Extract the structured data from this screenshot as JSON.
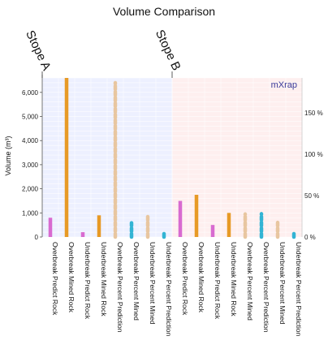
{
  "chart_data": {
    "type": "bar",
    "title": "Volume Comparison",
    "ylabel": "Volume (m³)",
    "y_ticks": [
      "0",
      "1,000",
      "2,000",
      "3,000",
      "4,000",
      "5,000",
      "6,000"
    ],
    "ylim": [
      0,
      6600
    ],
    "y2_ticks": [
      "0 %",
      "50 %",
      "100 %",
      "150 %"
    ],
    "y2lim": [
      0,
      192
    ],
    "logo": "mXrap",
    "groups": [
      {
        "name": "Stope A",
        "background": "#dfe3ff",
        "categories": [
          "Overbreak Predict Rock",
          "Overbreak Mined Rock",
          "Underbreak Predict Rock",
          "Underbreak Mined Rock",
          "Overbreak Percent Prediction",
          "Overbreak Percent Mined",
          "Underbreak Percent Mined",
          "Underbreak Percent Prediction"
        ]
      },
      {
        "name": "Stope B",
        "background": "#fde1e1",
        "categories": [
          "Overbreak Predict Rock",
          "Overbreak Mined Rock",
          "Underbreak Predict Rock",
          "Underbreak Mined Rock",
          "Overbreak Percent Mined",
          "Overbreak Percent Prediction",
          "Underbreak Percent Mined",
          "Underbreak Percent Prediction"
        ]
      }
    ],
    "series": [
      {
        "group": 0,
        "category": 0,
        "value": 800,
        "axis": "volume",
        "style": "solid",
        "color": "#d86bd0"
      },
      {
        "group": 0,
        "category": 1,
        "value": 6600,
        "axis": "volume",
        "style": "solid",
        "color": "#e79a26"
      },
      {
        "group": 0,
        "category": 2,
        "value": 200,
        "axis": "volume",
        "style": "solid",
        "color": "#d86bd0"
      },
      {
        "group": 0,
        "category": 3,
        "value": 900,
        "axis": "volume",
        "style": "solid",
        "color": "#e79a26"
      },
      {
        "group": 0,
        "category": 4,
        "value": 6400,
        "axis": "volume",
        "style": "dashed",
        "color": "#e8c6a0"
      },
      {
        "group": 0,
        "category": 5,
        "value": 17,
        "axis": "percent",
        "style": "dashed",
        "color": "#33b4d4"
      },
      {
        "group": 0,
        "category": 6,
        "value": 900,
        "axis": "volume",
        "style": "dashed",
        "color": "#e8c6a0"
      },
      {
        "group": 0,
        "category": 7,
        "value": 5,
        "axis": "percent",
        "style": "dashed",
        "color": "#33b4d4"
      },
      {
        "group": 1,
        "category": 0,
        "value": 1500,
        "axis": "volume",
        "style": "solid",
        "color": "#d86bd0"
      },
      {
        "group": 1,
        "category": 1,
        "value": 1750,
        "axis": "volume",
        "style": "solid",
        "color": "#e79a26"
      },
      {
        "group": 1,
        "category": 2,
        "value": 500,
        "axis": "volume",
        "style": "solid",
        "color": "#d86bd0"
      },
      {
        "group": 1,
        "category": 3,
        "value": 1000,
        "axis": "volume",
        "style": "solid",
        "color": "#e79a26"
      },
      {
        "group": 1,
        "category": 4,
        "value": 950,
        "axis": "volume",
        "style": "dashed",
        "color": "#e8c6a0"
      },
      {
        "group": 1,
        "category": 5,
        "value": 28,
        "axis": "percent",
        "style": "dashed",
        "color": "#33b4d4"
      },
      {
        "group": 1,
        "category": 6,
        "value": 600,
        "axis": "volume",
        "style": "dashed",
        "color": "#e8c6a0"
      },
      {
        "group": 1,
        "category": 7,
        "value": 5,
        "axis": "percent",
        "style": "dashed",
        "color": "#33b4d4"
      }
    ],
    "grid": true
  }
}
